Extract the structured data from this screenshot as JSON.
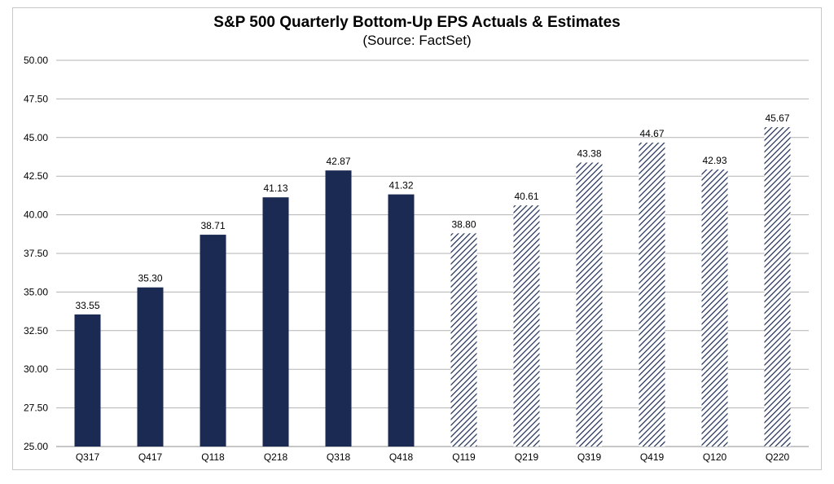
{
  "colors": {
    "actual_bar": "#1b2a52",
    "estimate_stripe": "#1b2a52",
    "gridline": "#b3b3b3",
    "frame": "#c8c8c8"
  },
  "chart_data": {
    "type": "bar",
    "title": "S&P 500 Quarterly Bottom-Up EPS Actuals & Estimates",
    "subtitle": "(Source: FactSet)",
    "xlabel": "",
    "ylabel": "",
    "categories": [
      "Q317",
      "Q417",
      "Q118",
      "Q218",
      "Q318",
      "Q418",
      "Q119",
      "Q219",
      "Q319",
      "Q419",
      "Q120",
      "Q220"
    ],
    "values": [
      33.55,
      35.3,
      38.71,
      41.13,
      42.87,
      41.32,
      38.8,
      40.61,
      43.38,
      44.67,
      42.93,
      45.67
    ],
    "data_labels": [
      "33.55",
      "35.30",
      "38.71",
      "41.13",
      "42.87",
      "41.32",
      "38.80",
      "40.61",
      "43.38",
      "44.67",
      "42.93",
      "45.67"
    ],
    "bar_style": [
      "solid",
      "solid",
      "solid",
      "solid",
      "solid",
      "solid",
      "hatched",
      "hatched",
      "hatched",
      "hatched",
      "hatched",
      "hatched"
    ],
    "ylim": [
      25,
      50
    ],
    "yticks": [
      "25.00",
      "27.50",
      "30.00",
      "32.50",
      "35.00",
      "37.50",
      "40.00",
      "42.50",
      "45.00",
      "47.50",
      "50.00"
    ],
    "grid": true,
    "legend": "none"
  }
}
